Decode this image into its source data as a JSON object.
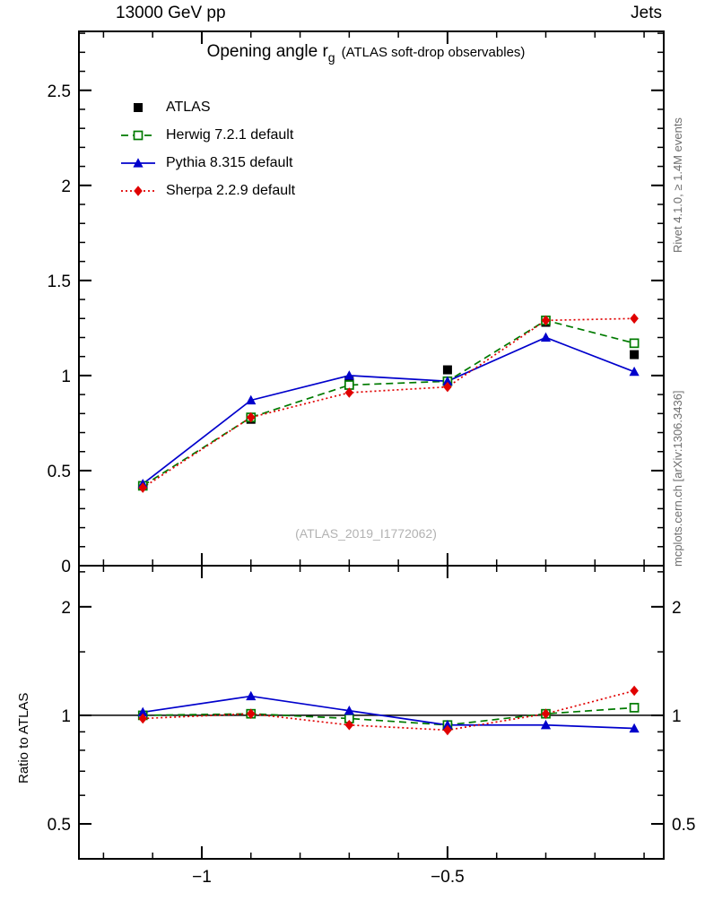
{
  "header": {
    "left": "13000 GeV pp",
    "right": "Jets"
  },
  "title": {
    "main": "Opening angle r",
    "sub": "g",
    "paren": "(ATLAS soft-drop observables)"
  },
  "watermark": "(ATLAS_2019_I1772062)",
  "side_notes": {
    "top": "Rivet 4.1.0, ≥ 1.4M events",
    "bottom": "mcplots.cern.ch [arXiv:1306.3436]"
  },
  "ratio_label": "Ratio to ATLAS",
  "chart_data": {
    "type": "line",
    "title": "Opening angle r_g (ATLAS soft-drop observables)",
    "xlabel": "",
    "ylabel": "",
    "x": [
      -1.12,
      -0.9,
      -0.7,
      -0.5,
      -0.3,
      -0.12
    ],
    "axes": {
      "x": {
        "range": [
          -1.25,
          -0.06
        ],
        "major": [
          -1,
          -0.5
        ],
        "major_labels": [
          "−1",
          "−0.5"
        ],
        "minor_step": 0.1
      },
      "main_y": {
        "range": [
          0,
          2.81
        ],
        "major": [
          0,
          0.5,
          1,
          1.5,
          2,
          2.5
        ],
        "major_labels": [
          "0",
          "0.5",
          "1",
          "1.5",
          "2",
          "2.5"
        ],
        "minor_step": 0.1
      },
      "ratio_y": {
        "range": [
          0.4,
          2.6
        ],
        "scale": "log",
        "major": [
          0.5,
          1,
          2
        ],
        "major_labels": [
          "0.5",
          "1",
          "2"
        ],
        "minor": [
          0.4,
          0.6,
          0.7,
          0.8,
          0.9,
          1.5,
          2.5
        ]
      }
    },
    "ratio_reference": 1,
    "series": [
      {
        "key": "atlas",
        "name": "ATLAS",
        "color": "#000000",
        "marker": "square-filled",
        "line": "none",
        "values": [
          0.42,
          0.77,
          0.97,
          1.03,
          1.28,
          1.11
        ]
      },
      {
        "key": "herwig",
        "name": "Herwig 7.2.1 default",
        "color": "#007a00",
        "marker": "square-open",
        "line": "dashed",
        "values": [
          0.42,
          0.78,
          0.95,
          0.97,
          1.29,
          1.17
        ],
        "ratio": [
          1.0,
          1.01,
          0.98,
          0.94,
          1.01,
          1.05
        ]
      },
      {
        "key": "pythia",
        "name": "Pythia 8.315 default",
        "color": "#0000cc",
        "marker": "triangle-filled",
        "line": "solid",
        "values": [
          0.43,
          0.87,
          1.0,
          0.97,
          1.2,
          1.02
        ],
        "ratio": [
          1.02,
          1.13,
          1.03,
          0.94,
          0.94,
          0.92
        ]
      },
      {
        "key": "sherpa",
        "name": "Sherpa 2.2.9 default",
        "color": "#e00000",
        "marker": "diamond-filled",
        "line": "dotted",
        "values": [
          0.41,
          0.78,
          0.91,
          0.94,
          1.29,
          1.3
        ],
        "ratio": [
          0.98,
          1.01,
          0.94,
          0.91,
          1.01,
          1.17
        ]
      }
    ]
  }
}
